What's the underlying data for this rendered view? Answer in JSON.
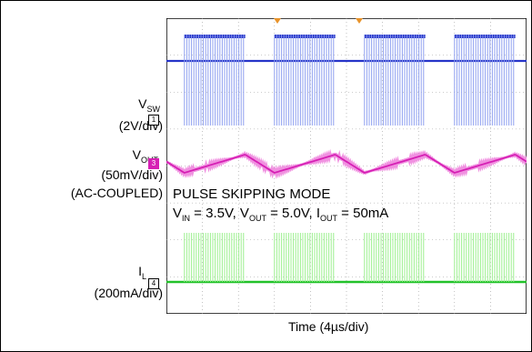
{
  "chart_data": {
    "type": "line",
    "title": "",
    "xlabel": "Time (4µs/div)",
    "ylabel": "",
    "grid": true,
    "annotation": {
      "line1": "PULSE SKIPPING MODE",
      "line2_parts": [
        {
          "t": "V",
          "sub": "IN"
        },
        {
          "t": " = 3.5V, V",
          "sub": "OUT"
        },
        {
          "t": " = 5.0V, I",
          "sub": "OUT"
        },
        {
          "t": " = 50mA",
          "sub": ""
        }
      ]
    },
    "bursts": [
      {
        "start": 0.8,
        "end": 3.5
      },
      {
        "start": 4.8,
        "end": 7.5
      },
      {
        "start": 8.8,
        "end": 11.5
      },
      {
        "start": 12.8,
        "end": 15.5
      }
    ],
    "series": [
      {
        "name": "V_SW",
        "label_main": "V",
        "label_sub": "SW",
        "scale": "(2V/div)",
        "color": "#2634c8",
        "burst_color": "#8fa0f0",
        "marker": "1"
      },
      {
        "name": "V_OUT",
        "label_main": "V",
        "label_sub": "OUT",
        "scale": "(50mV/div)",
        "scale2": "(AC-COUPLED)",
        "color": "#d61fb4",
        "burst_color": "#f090e0",
        "marker": "3"
      },
      {
        "name": "I_L",
        "label_main": "I",
        "label_sub": "L",
        "scale": "(200mA/div)",
        "color": "#22c22a",
        "burst_color": "#9cf08f",
        "marker": "4"
      }
    ]
  }
}
